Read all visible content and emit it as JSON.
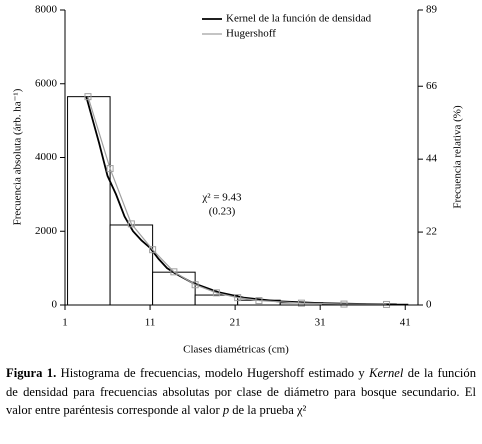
{
  "chart_data": {
    "type": "histogram",
    "xlabel": "Clases diamétricas (cm)",
    "ylabel": "Frecuencia absoluta (árb. ha⁻¹)",
    "y2label": "Frecuencia relativa (%)",
    "annotations": [
      "χ² = 9.43",
      "(0.23)"
    ],
    "bins": [
      1.3,
      6.3,
      11.3,
      16.3,
      21.3,
      26.3,
      31.3,
      36.3,
      41.3
    ],
    "counts": [
      5650,
      2170,
      890,
      270,
      130,
      60,
      30,
      20
    ],
    "bar_color": "#ffffff",
    "series": [
      {
        "name": "Kernel de la función de densidad",
        "color": "#000000",
        "x": [
          3.5,
          5,
          6,
          7,
          8,
          9,
          10,
          11,
          12,
          13,
          14,
          16,
          19,
          22,
          26,
          31,
          36,
          40
        ],
        "values": [
          5650,
          4400,
          3500,
          3000,
          2400,
          2000,
          1750,
          1550,
          1250,
          1000,
          850,
          600,
          350,
          200,
          100,
          50,
          25,
          15
        ]
      },
      {
        "name": "Hugershoff",
        "color": "#a0a0a0",
        "x": [
          3.7,
          6.3,
          8.8,
          11.3,
          13.8,
          16.3,
          18.8,
          21.3,
          23.8,
          28.8,
          33.8,
          38.8
        ],
        "values": [
          5650,
          3700,
          2200,
          1500,
          900,
          550,
          330,
          200,
          120,
          50,
          25,
          15
        ]
      }
    ],
    "xlim": [
      1,
      42.5
    ],
    "xticks": [
      1,
      11,
      21,
      31,
      41
    ],
    "ylim": [
      0,
      8000
    ],
    "yticks": [
      0,
      2000,
      4000,
      6000,
      8000
    ],
    "y2lim": [
      0,
      89
    ],
    "y2ticks": [
      0,
      22,
      44,
      66,
      89
    ],
    "legend": "top-right",
    "caption_label": "Figura 1.",
    "caption": [
      " Histograma de frecuencias, modelo Hugershoff estimado y ",
      "Kernel",
      " de la función de densidad para frecuencias absolutas por clase de diámetro para bosque secundario. El valor entre paréntesis corresponde al valor ",
      "p",
      " de la prueba χ²"
    ]
  }
}
